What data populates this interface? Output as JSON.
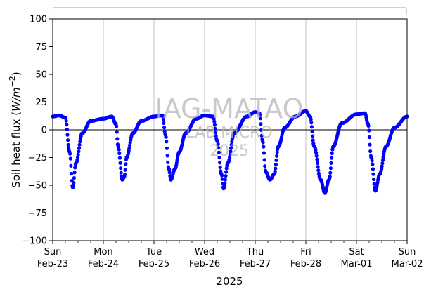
{
  "chart_data": {
    "type": "scatter",
    "title": "",
    "xlabel": "2025",
    "ylabel_main": "Soil heat flux (",
    "ylabel_unit": "W/m",
    "ylabel_exp": "−2",
    "ylabel_close": ")",
    "ylim": [
      -100,
      100
    ],
    "yticks": [
      100,
      75,
      50,
      25,
      0,
      -25,
      -50,
      -75,
      -100
    ],
    "ytick_labels": [
      "100",
      "75",
      "50",
      "25",
      "0",
      "−25",
      "−50",
      "−75",
      "−100"
    ],
    "xlim": [
      "2025-02-23",
      "2025-03-02"
    ],
    "xticks": [
      {
        "date": "2025-02-23",
        "day": "Sun",
        "label": "Feb-23"
      },
      {
        "date": "2025-02-24",
        "day": "Mon",
        "label": "Feb-24"
      },
      {
        "date": "2025-02-25",
        "day": "Tue",
        "label": "Feb-25"
      },
      {
        "date": "2025-02-26",
        "day": "Wed",
        "label": "Feb-26"
      },
      {
        "date": "2025-02-27",
        "day": "Thu",
        "label": "Feb-27"
      },
      {
        "date": "2025-02-28",
        "day": "Fri",
        "label": "Feb-28"
      },
      {
        "date": "2025-03-01",
        "day": "Sat",
        "label": "Mar-01"
      },
      {
        "date": "2025-03-02",
        "day": "Sun",
        "label": "Mar-02"
      }
    ],
    "grid": "vertical",
    "zero_line": true,
    "series_color": "#0000ff",
    "series": [
      {
        "name": "",
        "points": [
          [
            "2025-02-23 00:00",
            12
          ],
          [
            "2025-02-23 03:00",
            13
          ],
          [
            "2025-02-23 06:00",
            11
          ],
          [
            "2025-02-23 08:00",
            -20
          ],
          [
            "2025-02-23 09:30",
            -52
          ],
          [
            "2025-02-23 11:00",
            -30
          ],
          [
            "2025-02-23 14:00",
            -3
          ],
          [
            "2025-02-23 18:00",
            8
          ],
          [
            "2025-02-24 00:00",
            10
          ],
          [
            "2025-02-24 04:00",
            12
          ],
          [
            "2025-02-24 06:00",
            5
          ],
          [
            "2025-02-24 07:00",
            -15
          ],
          [
            "2025-02-24 09:00",
            -45
          ],
          [
            "2025-02-24 10:00",
            -42
          ],
          [
            "2025-02-24 11:00",
            -25
          ],
          [
            "2025-02-24 14:00",
            -3
          ],
          [
            "2025-02-24 18:00",
            8
          ],
          [
            "2025-02-25 00:00",
            12
          ],
          [
            "2025-02-25 04:00",
            13
          ],
          [
            "2025-02-25 05:30",
            -5
          ],
          [
            "2025-02-25 07:00",
            -35
          ],
          [
            "2025-02-25 08:00",
            -45
          ],
          [
            "2025-02-25 10:00",
            -35
          ],
          [
            "2025-02-25 12:00",
            -20
          ],
          [
            "2025-02-25 15:00",
            -3
          ],
          [
            "2025-02-25 20:00",
            10
          ],
          [
            "2025-02-26 00:00",
            13
          ],
          [
            "2025-02-26 04:00",
            12
          ],
          [
            "2025-02-26 06:00",
            -10
          ],
          [
            "2025-02-26 08:00",
            -40
          ],
          [
            "2025-02-26 09:00",
            -53
          ],
          [
            "2025-02-26 11:00",
            -30
          ],
          [
            "2025-02-26 14:00",
            -3
          ],
          [
            "2025-02-26 20:00",
            12
          ],
          [
            "2025-02-27 00:00",
            16
          ],
          [
            "2025-02-27 02:00",
            15
          ],
          [
            "2025-02-27 03:30",
            -10
          ],
          [
            "2025-02-27 05:00",
            -38
          ],
          [
            "2025-02-27 07:00",
            -45
          ],
          [
            "2025-02-27 09:00",
            -40
          ],
          [
            "2025-02-27 11:00",
            -15
          ],
          [
            "2025-02-27 14:00",
            2
          ],
          [
            "2025-02-27 19:00",
            12
          ],
          [
            "2025-02-28 00:00",
            17
          ],
          [
            "2025-02-28 02:00",
            12
          ],
          [
            "2025-02-28 04:00",
            -15
          ],
          [
            "2025-02-28 07:00",
            -45
          ],
          [
            "2025-02-28 09:00",
            -57
          ],
          [
            "2025-02-28 11:00",
            -45
          ],
          [
            "2025-02-28 13:00",
            -15
          ],
          [
            "2025-02-28 17:00",
            6
          ],
          [
            "2025-03-01 00:00",
            14
          ],
          [
            "2025-03-01 04:00",
            15
          ],
          [
            "2025-03-01 05:30",
            5
          ],
          [
            "2025-03-01 07:00",
            -25
          ],
          [
            "2025-03-01 09:00",
            -55
          ],
          [
            "2025-03-01 11:00",
            -40
          ],
          [
            "2025-03-01 14:00",
            -15
          ],
          [
            "2025-03-01 18:00",
            2
          ],
          [
            "2025-03-02 00:00",
            12
          ]
        ]
      }
    ]
  },
  "watermark": {
    "line1": "IAG-MATAO",
    "line2": "LAB MICRO",
    "line3": "2025"
  }
}
